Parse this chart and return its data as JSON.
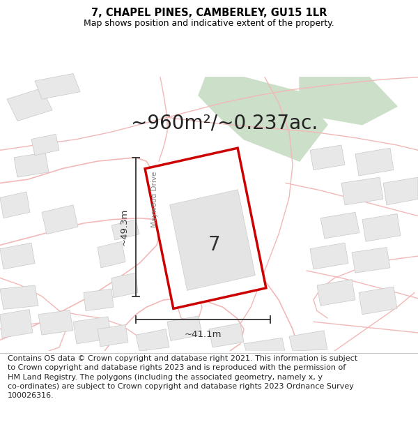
{
  "title_line1": "7, CHAPEL PINES, CAMBERLEY, GU15 1LR",
  "title_line2": "Map shows position and indicative extent of the property.",
  "area_text": "~960m²/~0.237ac.",
  "label_7": "7",
  "dim_height": "~49.3m",
  "dim_width": "~41.1m",
  "street_label": "Maywood Drive",
  "footer_lines": [
    "Contains OS data © Crown copyright and database right 2021. This information is subject to Crown copyright and database rights 2023 and is reproduced with the permission of",
    "HM Land Registry. The polygons (including the associated geometry, namely x, y co-ordinates) are subject to Crown copyright and database rights 2023 Ordnance Survey",
    "100026316."
  ],
  "bg_color": "#ffffff",
  "map_bg": "#ffffff",
  "green_color": "#ccdfc8",
  "road_color": "#f2b8b8",
  "building_fill": "#e8e8e8",
  "building_edge": "#c8c8c8",
  "plot_outline_color": "#cc0000",
  "plot_fill_color": "#ffffff",
  "dim_line_color": "#333333",
  "title_fontsize": 10.5,
  "subtitle_fontsize": 9,
  "area_fontsize": 20,
  "label_fontsize": 20,
  "dim_fontsize": 9.5,
  "street_fontsize": 7.5,
  "footer_fontsize": 8
}
